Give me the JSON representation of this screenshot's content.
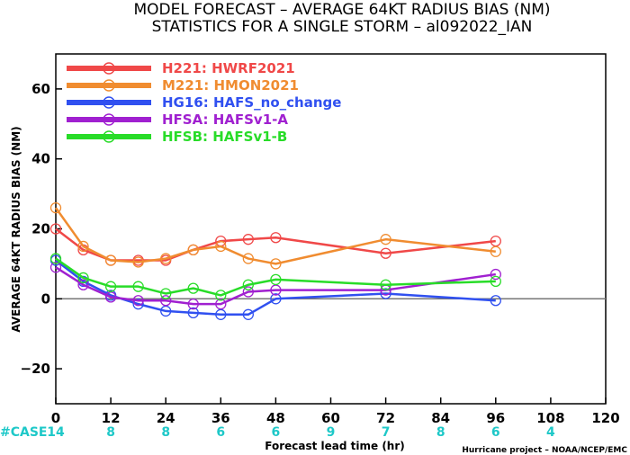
{
  "title_line1": "MODEL FORECAST – AVERAGE 64KT RADIUS BIAS (NM)",
  "title_line2": "STATISTICS FOR A SINGLE STORM – al092022_IAN",
  "ylabel": "AVERAGE 64KT RADIUS BIAS (NM)",
  "xlabel": "Forecast lead time (hr)",
  "footer": "Hurricane project – NOAA/NCEP/EMC",
  "case_label": "#CASE",
  "colors": {
    "zero_line": "#777777",
    "case_text": "#1ec8c8"
  },
  "chart_data": {
    "type": "line",
    "xlim": [
      0,
      120
    ],
    "ylim": [
      -30,
      70
    ],
    "x_ticks": [
      0,
      12,
      24,
      36,
      48,
      60,
      72,
      84,
      96,
      108,
      120
    ],
    "y_ticks": [
      -20,
      0,
      20,
      40,
      60
    ],
    "case_counts": [
      {
        "x": 0,
        "label": "14"
      },
      {
        "x": 12,
        "label": "8"
      },
      {
        "x": 24,
        "label": "8"
      },
      {
        "x": 36,
        "label": "6"
      },
      {
        "x": 48,
        "label": "6"
      },
      {
        "x": 60,
        "label": "9"
      },
      {
        "x": 72,
        "label": "7"
      },
      {
        "x": 84,
        "label": "8"
      },
      {
        "x": 96,
        "label": "6"
      },
      {
        "x": 108,
        "label": "4"
      }
    ],
    "series": [
      {
        "name": "H221: HWRF2021",
        "color": "#f04848",
        "points": [
          [
            0,
            20
          ],
          [
            6,
            14
          ],
          [
            12,
            11
          ],
          [
            18,
            11
          ],
          [
            24,
            11
          ],
          [
            30,
            14
          ],
          [
            36,
            16.5
          ],
          [
            42,
            17
          ],
          [
            48,
            17.5
          ],
          [
            72,
            13
          ],
          [
            96,
            16.5
          ]
        ]
      },
      {
        "name": "M221: HMON2021",
        "color": "#f08c30",
        "points": [
          [
            0,
            26
          ],
          [
            6,
            15
          ],
          [
            12,
            11
          ],
          [
            18,
            10.5
          ],
          [
            24,
            11.5
          ],
          [
            30,
            14
          ],
          [
            36,
            15
          ],
          [
            42,
            11.5
          ],
          [
            48,
            10
          ],
          [
            72,
            17
          ],
          [
            96,
            13.5
          ]
        ]
      },
      {
        "name": "HG16: HAFS_no_change",
        "color": "#3050f0",
        "points": [
          [
            0,
            11
          ],
          [
            6,
            5
          ],
          [
            12,
            1
          ],
          [
            18,
            -1.5
          ],
          [
            24,
            -3.5
          ],
          [
            30,
            -4
          ],
          [
            36,
            -4.5
          ],
          [
            42,
            -4.5
          ],
          [
            48,
            0
          ],
          [
            72,
            1.5
          ],
          [
            96,
            -0.5
          ]
        ]
      },
      {
        "name": "HFSA: HAFSv1-A",
        "color": "#a020d0",
        "points": [
          [
            0,
            9
          ],
          [
            6,
            4
          ],
          [
            12,
            0.5
          ],
          [
            18,
            -0.5
          ],
          [
            24,
            -0.5
          ],
          [
            30,
            -1.5
          ],
          [
            36,
            -1.5
          ],
          [
            42,
            2
          ],
          [
            48,
            2.5
          ],
          [
            72,
            2.5
          ],
          [
            96,
            7
          ]
        ]
      },
      {
        "name": "HFSB: HAFSv1-B",
        "color": "#28dc28",
        "points": [
          [
            0,
            11.5
          ],
          [
            6,
            6
          ],
          [
            12,
            3.5
          ],
          [
            18,
            3.5
          ],
          [
            24,
            1.5
          ],
          [
            30,
            3
          ],
          [
            36,
            1
          ],
          [
            42,
            4
          ],
          [
            48,
            5.5
          ],
          [
            72,
            4
          ],
          [
            96,
            5
          ]
        ]
      }
    ]
  }
}
